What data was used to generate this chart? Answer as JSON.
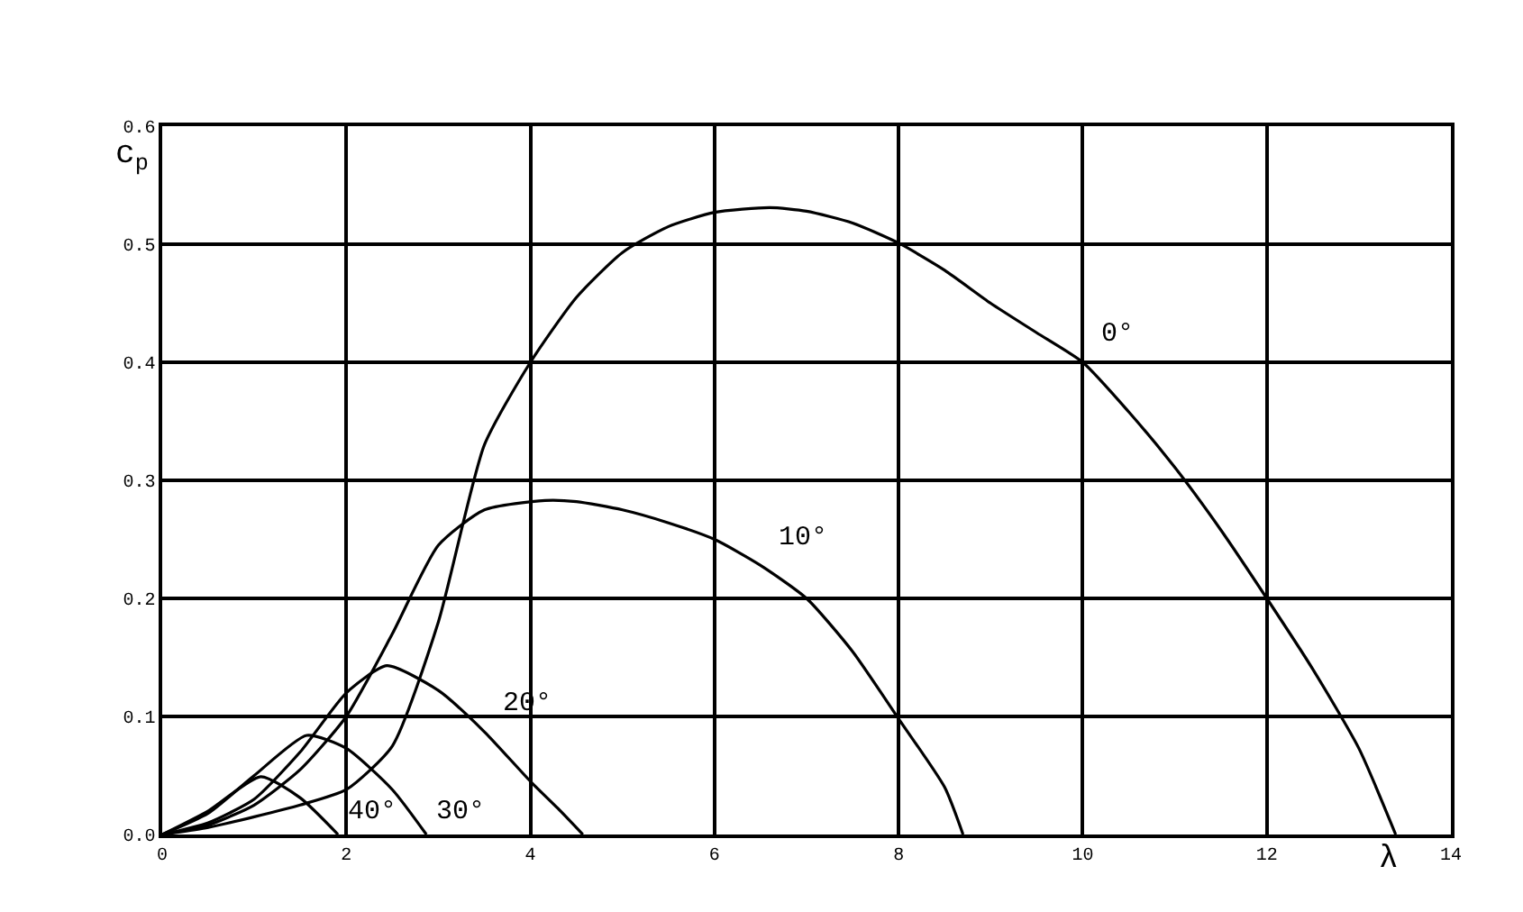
{
  "chart_data": {
    "type": "line",
    "xlabel": "λ",
    "ylabel": "c$_{p}$",
    "series": [
      {
        "name": "0°",
        "color": "#000000",
        "x": [
          0,
          0.5,
          1,
          1.5,
          2,
          2.5,
          3,
          3.5,
          4,
          4.5,
          5,
          5.5,
          6,
          6.6,
          7,
          7.5,
          8,
          8.5,
          9,
          9.5,
          10,
          10.5,
          11,
          11.5,
          12,
          12.5,
          13,
          13.4
        ],
        "values": [
          0,
          0.006,
          0.015,
          0.025,
          0.038,
          0.075,
          0.18,
          0.33,
          0.4,
          0.455,
          0.493,
          0.515,
          0.527,
          0.531,
          0.528,
          0.518,
          0.501,
          0.478,
          0.45,
          0.425,
          0.4,
          0.358,
          0.311,
          0.258,
          0.2,
          0.14,
          0.073,
          0
        ]
      },
      {
        "name": "10°",
        "color": "#000000",
        "x": [
          0,
          0.5,
          1,
          1.5,
          2,
          2.5,
          3,
          3.5,
          4.16,
          4.5,
          5,
          5.5,
          6,
          6.5,
          7,
          7.5,
          8,
          8.5,
          8.7
        ],
        "values": [
          0,
          0.008,
          0.025,
          0.055,
          0.1,
          0.17,
          0.245,
          0.275,
          0.283,
          0.282,
          0.275,
          0.264,
          0.25,
          0.228,
          0.2,
          0.155,
          0.098,
          0.04,
          0
        ]
      },
      {
        "name": "20°",
        "color": "#000000",
        "x": [
          0,
          0.5,
          1,
          1.5,
          2,
          2.44,
          3,
          3.5,
          4,
          4.3,
          4.57
        ],
        "values": [
          0,
          0.01,
          0.03,
          0.07,
          0.12,
          0.143,
          0.122,
          0.087,
          0.045,
          0.022,
          0
        ]
      },
      {
        "name": "30°",
        "color": "#000000",
        "x": [
          0,
          0.5,
          1,
          1.57,
          2,
          2.5,
          2.87
        ],
        "values": [
          0,
          0.018,
          0.05,
          0.084,
          0.073,
          0.038,
          0
        ]
      },
      {
        "name": "40°",
        "color": "#000000",
        "x": [
          0,
          0.5,
          1.07,
          1.5,
          1.91
        ],
        "values": [
          0,
          0.02,
          0.049,
          0.031,
          0
        ]
      }
    ],
    "xlim": [
      0,
      14
    ],
    "ylim": [
      0,
      0.6
    ],
    "xticks": [
      0,
      2,
      4,
      6,
      8,
      10,
      12,
      14
    ],
    "yticks": [
      {
        "value": 0,
        "label": "0.0"
      },
      {
        "value": 0.1,
        "label": "0.1"
      },
      {
        "value": 0.2,
        "label": "0.2"
      },
      {
        "value": 0.3,
        "label": "0.3"
      },
      {
        "value": 0.4,
        "label": "0.4"
      },
      {
        "value": 0.5,
        "label": "0.5"
      },
      {
        "value": 0.6,
        "label": "0.6"
      }
    ],
    "grid": true,
    "legend": false,
    "marker": "none",
    "line_style": "solid"
  }
}
